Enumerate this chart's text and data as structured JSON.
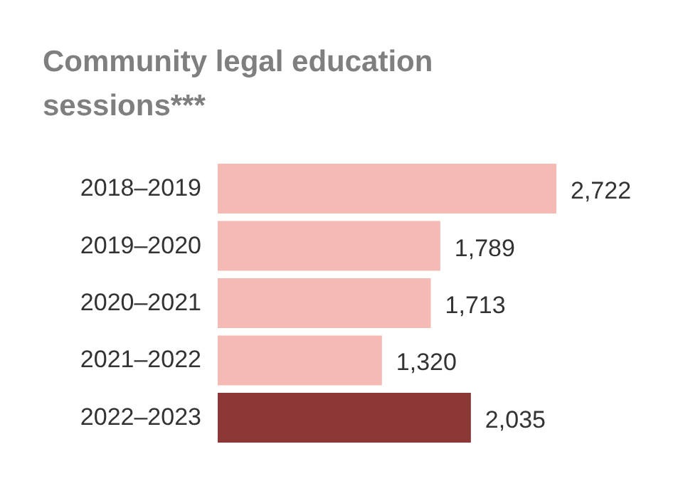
{
  "chart_data": {
    "type": "bar",
    "orientation": "horizontal",
    "title": "Community legal education sessions***",
    "categories": [
      "2018–2019",
      "2019–2020",
      "2020–2021",
      "2021–2022",
      "2022–2023"
    ],
    "values": [
      2722,
      1789,
      1713,
      1320,
      2035
    ],
    "colors": [
      "#f5bab4",
      "#f5bab4",
      "#f5bab4",
      "#f5bab4",
      "#8b3836"
    ],
    "value_labels": [
      "2,722",
      "1,789",
      "1,713",
      "1,320",
      "2,035"
    ],
    "grid": false
  }
}
